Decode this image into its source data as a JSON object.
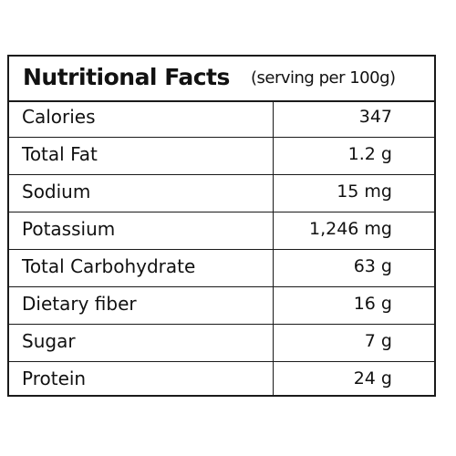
{
  "table": {
    "title": "Nutritional Facts",
    "subtitle": "(serving per 100g)",
    "rows": [
      {
        "label": "Calories",
        "value": "347"
      },
      {
        "label": "Total Fat",
        "value": "1.2 g"
      },
      {
        "label": "Sodium",
        "value": "15 mg"
      },
      {
        "label": "Potassium",
        "value": "1,246 mg"
      },
      {
        "label": "Total Carbohydrate",
        "value": "63 g"
      },
      {
        "label": "Dietary fiber",
        "value": "16 g"
      },
      {
        "label": "Sugar",
        "value": "7 g"
      },
      {
        "label": "Protein",
        "value": "24 g"
      }
    ]
  }
}
